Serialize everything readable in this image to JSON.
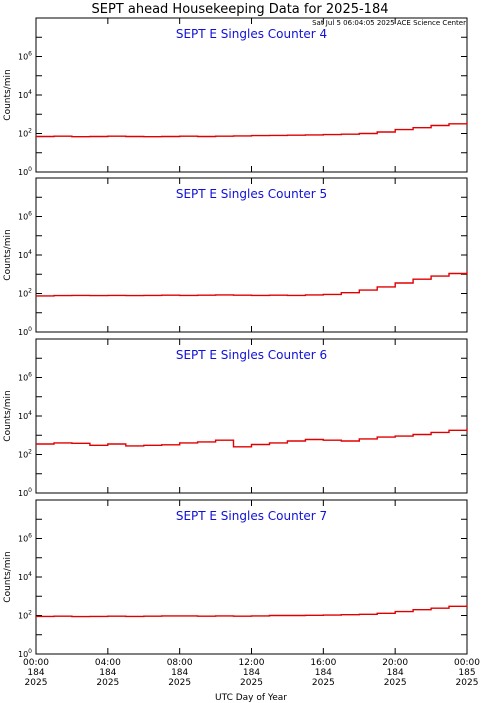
{
  "title": "SEPT ahead Housekeeping Data for 2025-184",
  "timestamp": "Sat Jul  5 06:04:05 2025 ACE Science Center",
  "chart_data": {
    "type": "line",
    "title": "SEPT ahead Housekeeping Data for 2025-184",
    "xlabel": "UTC Day of Year",
    "ylabel": "Counts/min",
    "yscale": "log",
    "ylim": [
      1,
      100000000
    ],
    "yticks": [
      {
        "base": "10",
        "exp": "0"
      },
      {
        "base": "10",
        "exp": "2"
      },
      {
        "base": "10",
        "exp": "4"
      },
      {
        "base": "10",
        "exp": "6"
      }
    ],
    "xlim": [
      0,
      24
    ],
    "xticks": [
      {
        "time": "00:00",
        "doy": "184",
        "year": "2025"
      },
      {
        "time": "04:00",
        "doy": "184",
        "year": "2025"
      },
      {
        "time": "08:00",
        "doy": "184",
        "year": "2025"
      },
      {
        "time": "12:00",
        "doy": "184",
        "year": "2025"
      },
      {
        "time": "16:00",
        "doy": "184",
        "year": "2025"
      },
      {
        "time": "20:00",
        "doy": "184",
        "year": "2025"
      },
      {
        "time": "00:00",
        "doy": "185",
        "year": "2025"
      }
    ],
    "panels": [
      {
        "name": "SEPT E Singles Counter 4",
        "x": [
          0,
          1,
          2,
          3,
          4,
          5,
          6,
          7,
          8,
          9,
          10,
          11,
          12,
          13,
          14,
          15,
          16,
          17,
          18,
          19,
          20,
          21,
          22,
          23,
          24
        ],
        "y": [
          70,
          72,
          68,
          70,
          72,
          70,
          68,
          70,
          72,
          70,
          72,
          75,
          78,
          80,
          82,
          85,
          88,
          92,
          100,
          120,
          160,
          200,
          260,
          320,
          380
        ]
      },
      {
        "name": "SEPT E Singles Counter 5",
        "x": [
          0,
          1,
          2,
          3,
          4,
          5,
          6,
          7,
          8,
          9,
          10,
          11,
          12,
          13,
          14,
          15,
          16,
          17,
          18,
          19,
          20,
          21,
          22,
          23,
          24
        ],
        "y": [
          75,
          78,
          80,
          78,
          80,
          78,
          80,
          82,
          80,
          82,
          85,
          82,
          80,
          82,
          80,
          85,
          90,
          110,
          150,
          220,
          350,
          550,
          800,
          1100,
          1400
        ]
      },
      {
        "name": "SEPT E Singles Counter 6",
        "x": [
          0,
          1,
          2,
          3,
          4,
          5,
          6,
          7,
          8,
          9,
          10,
          11,
          12,
          13,
          14,
          15,
          16,
          17,
          18,
          19,
          20,
          21,
          22,
          23,
          24
        ],
        "y": [
          350,
          400,
          380,
          300,
          350,
          280,
          300,
          320,
          400,
          450,
          550,
          250,
          330,
          400,
          500,
          600,
          550,
          500,
          650,
          800,
          900,
          1100,
          1400,
          1800,
          2300
        ]
      },
      {
        "name": "SEPT E Singles Counter 7",
        "x": [
          0,
          1,
          2,
          3,
          4,
          5,
          6,
          7,
          8,
          9,
          10,
          11,
          12,
          13,
          14,
          15,
          16,
          17,
          18,
          19,
          20,
          21,
          22,
          23,
          24
        ],
        "y": [
          90,
          92,
          88,
          90,
          92,
          90,
          92,
          95,
          95,
          92,
          95,
          92,
          95,
          100,
          100,
          102,
          105,
          110,
          115,
          130,
          160,
          200,
          240,
          300,
          350
        ]
      }
    ]
  }
}
